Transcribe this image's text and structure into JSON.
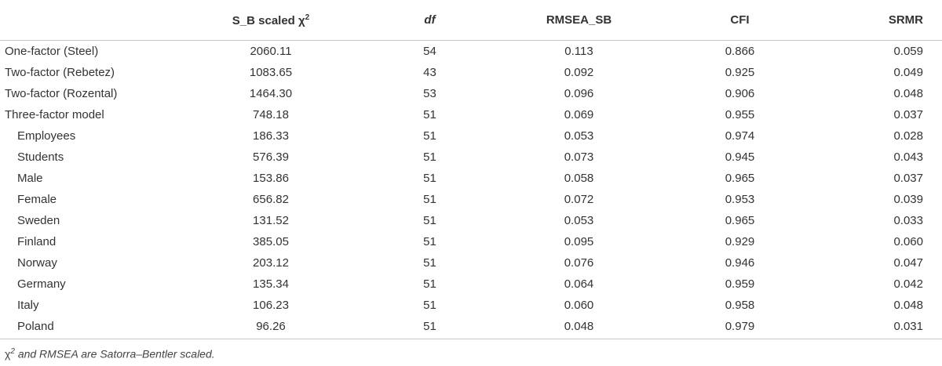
{
  "table": {
    "header": [
      "",
      {
        "text": "S_B scaled χ",
        "sup": "2"
      },
      "df",
      "RMSEA_SB",
      "CFI",
      "SRMR"
    ],
    "rows": [
      [
        "One-factor (Steel)",
        "2060.11",
        "54",
        "0.113",
        "0.866",
        "0.059"
      ],
      [
        "Two-factor (Rebetez)",
        "1083.65",
        "43",
        "0.092",
        "0.925",
        "0.049"
      ],
      [
        "Two-factor (Rozental)",
        "1464.30",
        "53",
        "0.096",
        "0.906",
        "0.048"
      ],
      [
        "Three-factor model",
        "748.18",
        "51",
        "0.069",
        "0.955",
        "0.037"
      ]
    ],
    "subrows": [
      [
        "Employees",
        "186.33",
        "51",
        "0.053",
        "0.974",
        "0.028"
      ],
      [
        "Students",
        "576.39",
        "51",
        "0.073",
        "0.945",
        "0.043"
      ],
      [
        "Male",
        "153.86",
        "51",
        "0.058",
        "0.965",
        "0.037"
      ],
      [
        "Female",
        "656.82",
        "51",
        "0.072",
        "0.953",
        "0.039"
      ],
      [
        "Sweden",
        "131.52",
        "51",
        "0.053",
        "0.965",
        "0.033"
      ],
      [
        "Finland",
        "385.05",
        "51",
        "0.095",
        "0.929",
        "0.060"
      ],
      [
        "Norway",
        "203.12",
        "51",
        "0.076",
        "0.946",
        "0.047"
      ],
      [
        "Germany",
        "135.34",
        "51",
        "0.064",
        "0.959",
        "0.042"
      ],
      [
        "Italy",
        "106.23",
        "51",
        "0.060",
        "0.958",
        "0.048"
      ],
      [
        "Poland",
        "96.26",
        "51",
        "0.048",
        "0.979",
        "0.031"
      ]
    ]
  },
  "footnote": {
    "symbol": "χ",
    "sup": "2",
    "text": "and RMSEA are Satorra–Bentler scaled."
  }
}
